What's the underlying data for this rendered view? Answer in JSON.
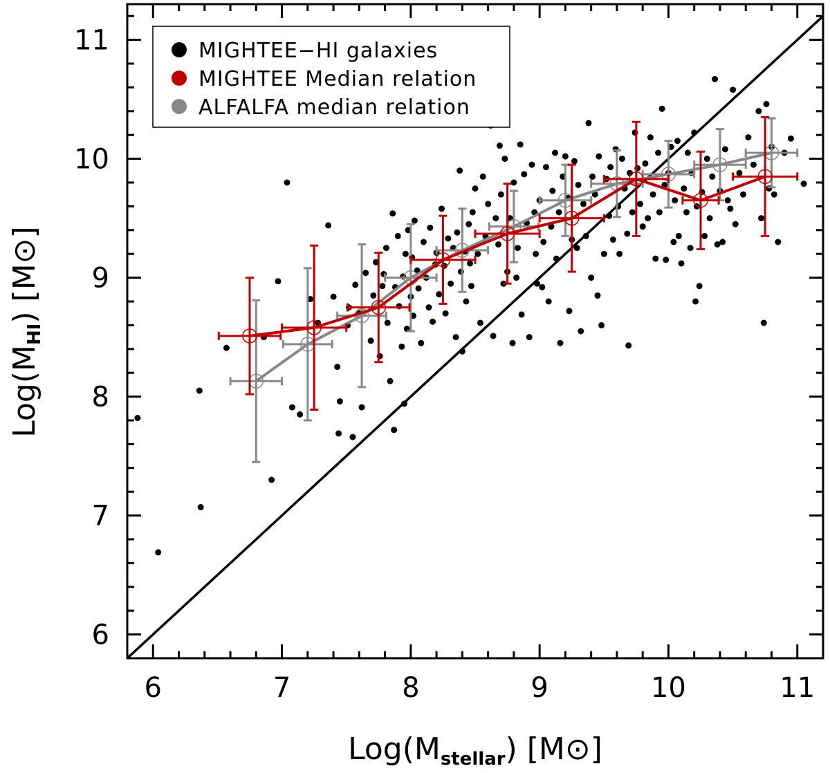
{
  "chart_data": {
    "type": "scatter",
    "xlabel": {
      "prefix": "Log(M",
      "sub": "stellar",
      "suffix": ")  [M",
      "sun": "⊙",
      "close": "]"
    },
    "ylabel": {
      "prefix": "Log(M",
      "sub": "HI",
      "suffix": ")  [M",
      "sun": "⊙",
      "close": "]"
    },
    "xlim": [
      5.8,
      11.2
    ],
    "ylim": [
      5.8,
      11.3
    ],
    "xticks": [
      6,
      7,
      8,
      9,
      10,
      11
    ],
    "yticks": [
      6,
      7,
      8,
      9,
      10,
      11
    ],
    "grid": false,
    "legend": {
      "placement": "top-left",
      "entries": [
        {
          "label": "MIGHTEE−HI galaxies",
          "color": "#000000"
        },
        {
          "label": "MIGHTEE Median relation",
          "color": "#c00000"
        },
        {
          "label": "ALFALFA median relation",
          "color": "#888888"
        }
      ]
    },
    "reference_line": {
      "description": "one-to-one",
      "color": "#000000"
    },
    "scatter": {
      "name": "MIGHTEE−HI galaxies",
      "color": "#000000",
      "points": [
        [
          5.88,
          7.82
        ],
        [
          6.04,
          6.69
        ],
        [
          6.36,
          8.05
        ],
        [
          6.37,
          7.07
        ],
        [
          6.57,
          8.41
        ],
        [
          6.86,
          8.5
        ],
        [
          6.92,
          7.3
        ],
        [
          6.97,
          8.97
        ],
        [
          7.04,
          9.8
        ],
        [
          7.08,
          7.91
        ],
        [
          7.14,
          7.85
        ],
        [
          7.22,
          8.82
        ],
        [
          7.28,
          8.62
        ],
        [
          7.36,
          9.44
        ],
        [
          7.4,
          8.84
        ],
        [
          7.43,
          8.25
        ],
        [
          7.44,
          7.69
        ],
        [
          7.45,
          7.96
        ],
        [
          7.51,
          8.6
        ],
        [
          7.52,
          8.75
        ],
        [
          7.55,
          7.66
        ],
        [
          7.57,
          8.94
        ],
        [
          7.6,
          8.7
        ],
        [
          7.62,
          7.91
        ],
        [
          7.65,
          9.04
        ],
        [
          7.69,
          8.47
        ],
        [
          7.71,
          8.85
        ],
        [
          7.73,
          9.13
        ],
        [
          7.76,
          8.34
        ],
        [
          7.78,
          8.93
        ],
        [
          7.79,
          9.03
        ],
        [
          7.81,
          9.25
        ],
        [
          7.82,
          8.62
        ],
        [
          7.84,
          8.13
        ],
        [
          7.86,
          9.54
        ],
        [
          7.87,
          7.72
        ],
        [
          7.88,
          8.92
        ],
        [
          7.9,
          9.35
        ],
        [
          7.91,
          8.76
        ],
        [
          7.93,
          8.42
        ],
        [
          7.94,
          9.01
        ],
        [
          7.95,
          7.94
        ],
        [
          7.96,
          9.2
        ],
        [
          7.97,
          8.57
        ],
        [
          7.98,
          9.4
        ],
        [
          8.0,
          8.84
        ],
        [
          8.01,
          9.17
        ],
        [
          8.02,
          8.68
        ],
        [
          8.03,
          9.48
        ],
        [
          8.05,
          9.06
        ],
        [
          8.06,
          8.91
        ],
        [
          8.08,
          8.45
        ],
        [
          8.1,
          9.3
        ],
        [
          8.12,
          9.0
        ],
        [
          8.14,
          8.75
        ],
        [
          8.15,
          9.42
        ],
        [
          8.17,
          8.63
        ],
        [
          8.19,
          9.11
        ],
        [
          8.2,
          9.21
        ],
        [
          8.22,
          8.86
        ],
        [
          8.24,
          9.58
        ],
        [
          8.26,
          9.1
        ],
        [
          8.27,
          8.7
        ],
        [
          8.29,
          9.33
        ],
        [
          8.31,
          8.95
        ],
        [
          8.33,
          9.25
        ],
        [
          8.35,
          8.5
        ],
        [
          8.36,
          9.38
        ],
        [
          8.38,
          9.9
        ],
        [
          8.39,
          9.05
        ],
        [
          8.4,
          8.38
        ],
        [
          8.42,
          9.22
        ],
        [
          8.43,
          8.8
        ],
        [
          8.45,
          9.45
        ],
        [
          8.46,
          9.12
        ],
        [
          8.47,
          8.93
        ],
        [
          8.48,
          9.55
        ],
        [
          8.5,
          9.75
        ],
        [
          8.52,
          9.2
        ],
        [
          8.54,
          8.62
        ],
        [
          8.56,
          9.85
        ],
        [
          8.58,
          9.35
        ],
        [
          8.6,
          9.62
        ],
        [
          8.62,
          10.28
        ],
        [
          8.64,
          8.51
        ],
        [
          8.66,
          9.5
        ],
        [
          8.68,
          9.28
        ],
        [
          8.69,
          10.11
        ],
        [
          8.7,
          9.7
        ],
        [
          8.72,
          8.95
        ],
        [
          8.73,
          10.0
        ],
        [
          8.75,
          9.05
        ],
        [
          8.77,
          9.5
        ],
        [
          8.79,
          8.45
        ],
        [
          8.8,
          9.8
        ],
        [
          8.82,
          9.0
        ],
        [
          8.83,
          9.25
        ],
        [
          8.85,
          10.12
        ],
        [
          8.86,
          8.69
        ],
        [
          8.88,
          9.87
        ],
        [
          8.9,
          9.46
        ],
        [
          8.92,
          8.5
        ],
        [
          8.94,
          9.95
        ],
        [
          8.96,
          9.55
        ],
        [
          8.97,
          9.2
        ],
        [
          8.98,
          8.95
        ],
        [
          9.0,
          9.65
        ],
        [
          9.02,
          8.92
        ],
        [
          9.03,
          9.3
        ],
        [
          9.05,
          9.93
        ],
        [
          9.07,
          8.8
        ],
        [
          9.09,
          9.43
        ],
        [
          9.1,
          9.73
        ],
        [
          9.12,
          10.05
        ],
        [
          9.13,
          9.16
        ],
        [
          9.15,
          9.55
        ],
        [
          9.16,
          8.45
        ],
        [
          9.18,
          9.85
        ],
        [
          9.2,
          10.02
        ],
        [
          9.22,
          9.67
        ],
        [
          9.23,
          8.72
        ],
        [
          9.25,
          9.32
        ],
        [
          9.27,
          9.98
        ],
        [
          9.29,
          9.25
        ],
        [
          9.3,
          9.78
        ],
        [
          9.32,
          8.55
        ],
        [
          9.34,
          9.62
        ],
        [
          9.36,
          9.35
        ],
        [
          9.38,
          10.3
        ],
        [
          9.4,
          9.0
        ],
        [
          9.41,
          9.85
        ],
        [
          9.43,
          9.7
        ],
        [
          9.45,
          8.85
        ],
        [
          9.46,
          10.02
        ],
        [
          9.48,
          8.6
        ],
        [
          9.5,
          9.2
        ],
        [
          9.52,
          9.83
        ],
        [
          9.54,
          9.52
        ],
        [
          9.55,
          9.93
        ],
        [
          9.57,
          9.32
        ],
        [
          9.59,
          10.08
        ],
        [
          9.61,
          9.6
        ],
        [
          9.62,
          9.2
        ],
        [
          9.64,
          10.0
        ],
        [
          9.66,
          9.75
        ],
        [
          9.68,
          9.37
        ],
        [
          9.69,
          8.43
        ],
        [
          9.7,
          9.88
        ],
        [
          9.72,
          9.55
        ],
        [
          9.74,
          10.22
        ],
        [
          9.76,
          9.92
        ],
        [
          9.78,
          9.62
        ],
        [
          9.8,
          9.43
        ],
        [
          9.82,
          9.96
        ],
        [
          9.84,
          9.5
        ],
        [
          9.86,
          10.18
        ],
        [
          9.88,
          9.7
        ],
        [
          9.9,
          9.16
        ],
        [
          9.92,
          10.05
        ],
        [
          9.93,
          9.55
        ],
        [
          9.95,
          10.42
        ],
        [
          9.97,
          9.78
        ],
        [
          9.98,
          9.15
        ],
        [
          10.0,
          9.88
        ],
        [
          10.02,
          10.1
        ],
        [
          10.04,
          9.3
        ],
        [
          10.05,
          9.65
        ],
        [
          10.07,
          10.15
        ],
        [
          10.08,
          9.35
        ],
        [
          10.1,
          9.12
        ],
        [
          10.12,
          9.75
        ],
        [
          10.14,
          9.55
        ],
        [
          10.15,
          10.05
        ],
        [
          10.17,
          9.25
        ],
        [
          10.18,
          9.88
        ],
        [
          10.2,
          10.22
        ],
        [
          10.21,
          8.8
        ],
        [
          10.22,
          9.6
        ],
        [
          10.24,
          8.93
        ],
        [
          10.26,
          9.72
        ],
        [
          10.28,
          9.35
        ],
        [
          10.3,
          10.0
        ],
        [
          10.32,
          9.5
        ],
        [
          10.34,
          9.85
        ],
        [
          10.36,
          10.67
        ],
        [
          10.38,
          9.28
        ],
        [
          10.4,
          9.73
        ],
        [
          10.42,
          9.3
        ],
        [
          10.44,
          10.08
        ],
        [
          10.46,
          9.65
        ],
        [
          10.48,
          9.58
        ],
        [
          10.5,
          10.58
        ],
        [
          10.52,
          9.45
        ],
        [
          10.55,
          9.88
        ],
        [
          10.58,
          9.7
        ],
        [
          10.62,
          10.18
        ],
        [
          10.66,
          9.95
        ],
        [
          10.7,
          10.4
        ],
        [
          10.72,
          9.5
        ],
        [
          10.74,
          8.62
        ],
        [
          10.76,
          10.46
        ],
        [
          10.78,
          9.75
        ],
        [
          10.8,
          10.1
        ],
        [
          10.82,
          9.7
        ],
        [
          10.85,
          9.3
        ],
        [
          10.9,
          10.05
        ],
        [
          10.95,
          10.17
        ],
        [
          11.05,
          9.79
        ]
      ]
    },
    "series": [
      {
        "name": "MIGHTEE Median relation",
        "color": "#c00000",
        "x": [
          6.75,
          7.25,
          7.75,
          8.25,
          8.75,
          9.25,
          9.75,
          10.25,
          10.75
        ],
        "y": [
          8.51,
          8.58,
          8.75,
          9.15,
          9.37,
          9.5,
          9.83,
          9.65,
          9.85
        ],
        "xerr": [
          0.24,
          0.25,
          0.24,
          0.25,
          0.25,
          0.25,
          0.25,
          0.14,
          0.25
        ],
        "yerr": [
          0.49,
          0.69,
          0.46,
          0.37,
          0.42,
          0.45,
          0.48,
          0.41,
          0.5
        ]
      },
      {
        "name": "ALFALFA median relation",
        "color": "#888888",
        "x": [
          6.8,
          7.2,
          7.62,
          8.0,
          8.4,
          8.8,
          9.2,
          9.6,
          10.0,
          10.4,
          10.8
        ],
        "y": [
          8.13,
          8.44,
          8.68,
          9.0,
          9.23,
          9.43,
          9.65,
          9.79,
          9.87,
          9.95,
          10.05
        ],
        "xerr": [
          0.2,
          0.19,
          0.19,
          0.2,
          0.2,
          0.19,
          0.2,
          0.2,
          0.2,
          0.2,
          0.2
        ],
        "yerr": [
          0.68,
          0.64,
          0.6,
          0.45,
          0.35,
          0.3,
          0.3,
          0.28,
          0.28,
          0.3,
          0.29
        ]
      }
    ]
  }
}
